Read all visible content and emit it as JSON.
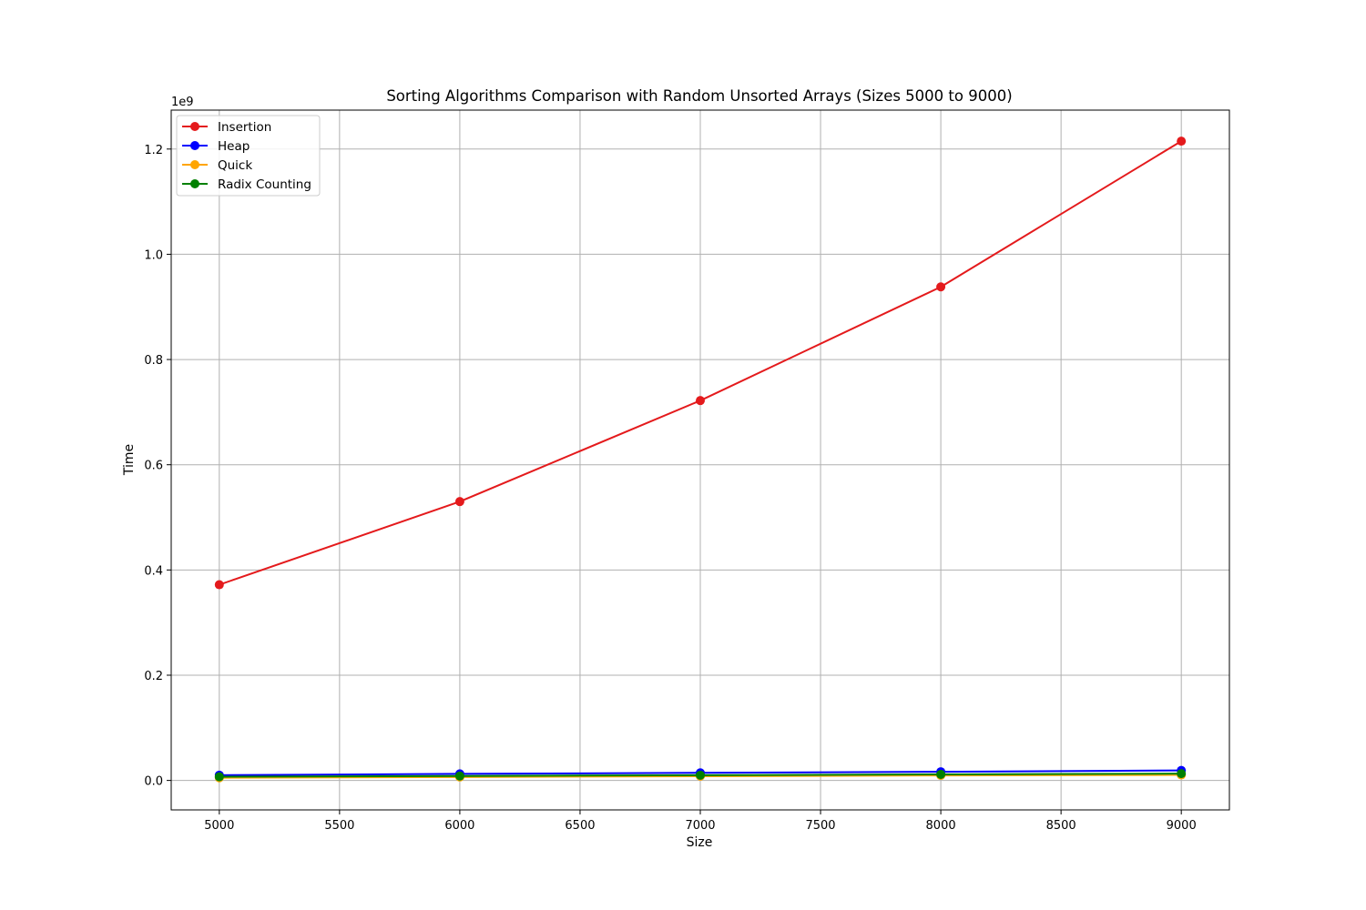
{
  "chart_data": {
    "type": "line",
    "title": "Sorting Algorithms Comparison with Random Unsorted Arrays (Sizes 5000 to 9000)",
    "xlabel": "Size",
    "ylabel": "Time",
    "y_offset_label": "1e9",
    "y_scale": 1000000000,
    "x": [
      5000,
      6000,
      7000,
      8000,
      9000
    ],
    "xlim": [
      4800,
      9200
    ],
    "ylim": [
      -56000000,
      1274000000
    ],
    "x_ticks": [
      5000,
      5500,
      6000,
      6500,
      7000,
      7500,
      8000,
      8500,
      9000
    ],
    "x_tick_labels": [
      "5000",
      "5500",
      "6000",
      "6500",
      "7000",
      "7500",
      "8000",
      "8500",
      "9000"
    ],
    "y_ticks": [
      0,
      200000000,
      400000000,
      600000000,
      800000000,
      1000000000,
      1200000000
    ],
    "y_tick_labels": [
      "0.0",
      "0.2",
      "0.4",
      "0.6",
      "0.8",
      "1.0",
      "1.2"
    ],
    "grid": true,
    "legend_position": "upper-left",
    "series": [
      {
        "name": "Insertion",
        "color": "#e41a1c",
        "values": [
          372000000,
          530000000,
          722000000,
          938000000,
          1215000000
        ]
      },
      {
        "name": "Heap",
        "color": "#0000ff",
        "values": [
          10000000,
          12500000,
          14500000,
          16500000,
          19000000
        ]
      },
      {
        "name": "Quick",
        "color": "#ffa500",
        "values": [
          5000000,
          6500000,
          8000000,
          9500000,
          10500000
        ]
      },
      {
        "name": "Radix Counting",
        "color": "#008000",
        "values": [
          7000000,
          8500000,
          10000000,
          11500000,
          13000000
        ]
      }
    ]
  }
}
